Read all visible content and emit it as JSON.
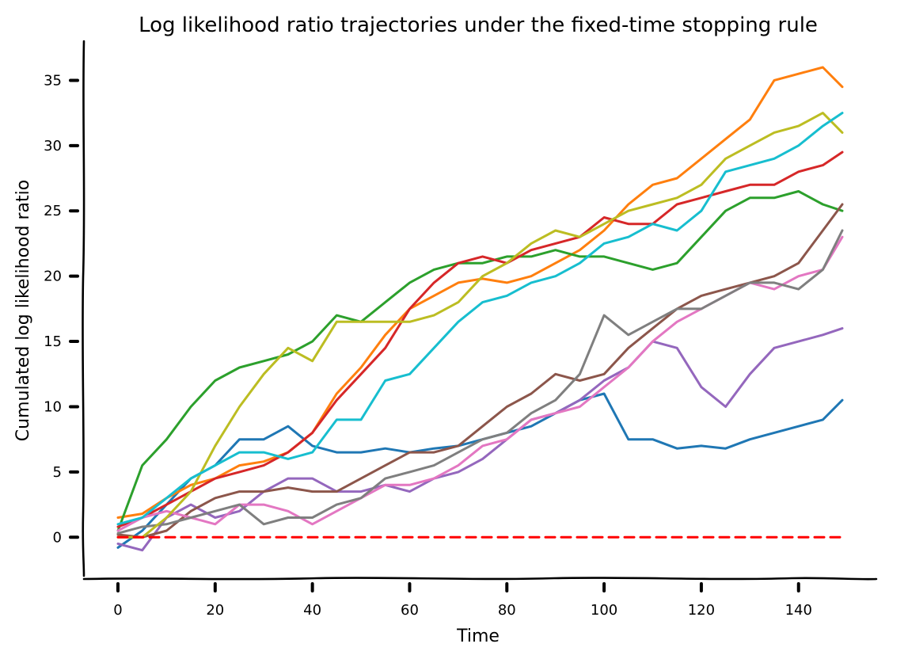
{
  "chart_data": {
    "type": "line",
    "title": "Log likelihood ratio trajectories under the fixed-time stopping rule",
    "xlabel": "Time",
    "ylabel": "Cumulated log likelihood ratio",
    "xlim": [
      -7,
      156
    ],
    "ylim": [
      -3.2,
      38
    ],
    "xticks": [
      0,
      20,
      40,
      60,
      80,
      100,
      120,
      140
    ],
    "yticks": [
      0,
      5,
      10,
      15,
      20,
      25,
      30,
      35
    ],
    "grid": false,
    "legend": "none",
    "x": [
      0,
      5,
      10,
      15,
      20,
      25,
      30,
      35,
      40,
      45,
      50,
      55,
      60,
      65,
      70,
      75,
      80,
      85,
      90,
      95,
      100,
      105,
      110,
      115,
      120,
      125,
      130,
      135,
      140,
      145,
      149
    ],
    "series": [
      {
        "color": "#1f77b4",
        "values": [
          -0.8,
          0.5,
          2.5,
          4.5,
          5.5,
          7.5,
          7.5,
          8.5,
          7.0,
          6.5,
          6.5,
          6.8,
          6.5,
          6.8,
          7.0,
          7.5,
          8.0,
          8.5,
          9.5,
          10.5,
          11.0,
          7.5,
          7.5,
          6.8,
          7.0,
          6.8,
          7.5,
          8.0,
          8.5,
          9.0,
          10.5
        ]
      },
      {
        "color": "#ff7f0e",
        "values": [
          1.5,
          1.8,
          3.0,
          4.0,
          4.5,
          5.5,
          5.8,
          6.5,
          8.0,
          11.0,
          13.0,
          15.5,
          17.5,
          18.5,
          19.5,
          19.8,
          19.5,
          20.0,
          21.0,
          22.0,
          23.5,
          25.5,
          27.0,
          27.5,
          29.0,
          30.5,
          32.0,
          35.0,
          35.5,
          36.0,
          34.5
        ]
      },
      {
        "color": "#2ca02c",
        "values": [
          0.5,
          5.5,
          7.5,
          10.0,
          12.0,
          13.0,
          13.5,
          14.0,
          15.0,
          17.0,
          16.5,
          18.0,
          19.5,
          20.5,
          21.0,
          21.0,
          21.5,
          21.5,
          22.0,
          21.5,
          21.5,
          21.0,
          20.5,
          21.0,
          23.0,
          25.0,
          26.0,
          26.0,
          26.5,
          25.5,
          25.0
        ]
      },
      {
        "color": "#d62728",
        "values": [
          0.8,
          1.5,
          2.5,
          3.5,
          4.5,
          5.0,
          5.5,
          6.5,
          8.0,
          10.5,
          12.5,
          14.5,
          17.5,
          19.5,
          21.0,
          21.5,
          21.0,
          22.0,
          22.5,
          23.0,
          24.5,
          24.0,
          24.0,
          25.5,
          26.0,
          26.5,
          27.0,
          27.0,
          28.0,
          28.5,
          29.5
        ]
      },
      {
        "color": "#9467bd",
        "values": [
          -0.5,
          -1.0,
          1.5,
          2.5,
          1.5,
          2.0,
          3.5,
          4.5,
          4.5,
          3.5,
          3.5,
          4.0,
          3.5,
          4.5,
          5.0,
          6.0,
          7.5,
          9.0,
          9.5,
          10.5,
          12.0,
          13.0,
          15.0,
          14.5,
          11.5,
          10.0,
          12.5,
          14.5,
          15.0,
          15.5,
          16.0
        ]
      },
      {
        "color": "#8c564b",
        "values": [
          0.2,
          0.0,
          0.5,
          2.0,
          3.0,
          3.5,
          3.5,
          3.8,
          3.5,
          3.5,
          4.5,
          5.5,
          6.5,
          6.5,
          7.0,
          8.5,
          10.0,
          11.0,
          12.5,
          12.0,
          12.5,
          14.5,
          16.0,
          17.5,
          18.5,
          19.0,
          19.5,
          20.0,
          21.0,
          23.5,
          25.5
        ]
      },
      {
        "color": "#e377c2",
        "values": [
          0.5,
          1.5,
          2.0,
          1.5,
          1.0,
          2.5,
          2.5,
          2.0,
          1.0,
          2.0,
          3.0,
          4.0,
          4.0,
          4.5,
          5.5,
          7.0,
          7.5,
          9.0,
          9.5,
          10.0,
          11.5,
          13.0,
          15.0,
          16.5,
          17.5,
          18.5,
          19.5,
          19.0,
          20.0,
          20.5,
          23.0
        ]
      },
      {
        "color": "#7f7f7f",
        "values": [
          0.3,
          0.8,
          1.0,
          1.5,
          2.0,
          2.5,
          1.0,
          1.5,
          1.5,
          2.5,
          3.0,
          4.5,
          5.0,
          5.5,
          6.5,
          7.5,
          8.0,
          9.5,
          10.5,
          12.5,
          17.0,
          15.5,
          16.5,
          17.5,
          17.5,
          18.5,
          19.5,
          19.5,
          19.0,
          20.5,
          23.5
        ]
      },
      {
        "color": "#bcbd22",
        "values": [
          0.0,
          0.0,
          1.5,
          3.5,
          7.0,
          10.0,
          12.5,
          14.5,
          13.5,
          16.5,
          16.5,
          16.5,
          16.5,
          17.0,
          18.0,
          20.0,
          21.0,
          22.5,
          23.5,
          23.0,
          24.0,
          25.0,
          25.5,
          26.0,
          27.0,
          29.0,
          30.0,
          31.0,
          31.5,
          32.5,
          31.0
        ]
      },
      {
        "color": "#17becf",
        "values": [
          1.0,
          1.5,
          3.0,
          4.5,
          5.5,
          6.5,
          6.5,
          6.0,
          6.5,
          9.0,
          9.0,
          12.0,
          12.5,
          14.5,
          16.5,
          18.0,
          18.5,
          19.5,
          20.0,
          21.0,
          22.5,
          23.0,
          24.0,
          23.5,
          25.0,
          28.0,
          28.5,
          29.0,
          30.0,
          31.5,
          32.5
        ]
      },
      {
        "color": "#ff0000",
        "dashed": true,
        "values": [
          0,
          0,
          0,
          0,
          0,
          0,
          0,
          0,
          0,
          0,
          0,
          0,
          0,
          0,
          0,
          0,
          0,
          0,
          0,
          0,
          0,
          0,
          0,
          0,
          0,
          0,
          0,
          0,
          0,
          0,
          0
        ]
      }
    ]
  }
}
